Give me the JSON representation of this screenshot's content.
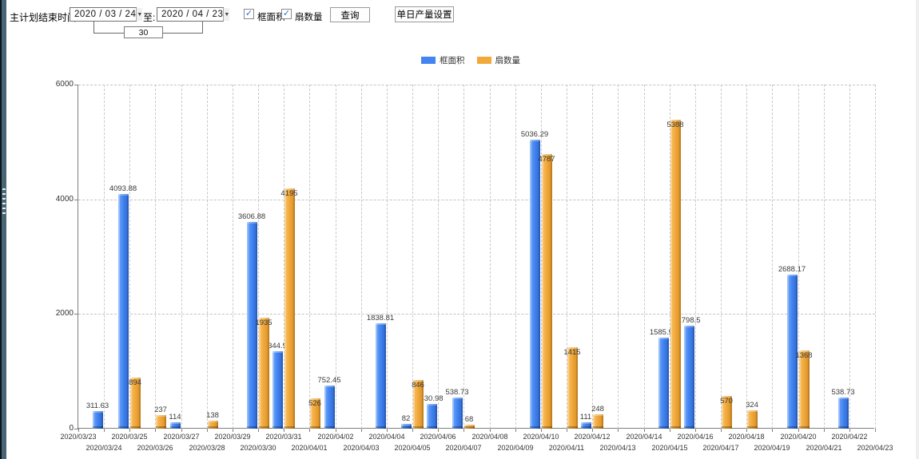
{
  "toolbar": {
    "label_plan_end": "主计划结束时间:",
    "date_from": "2020 / 03 / 24",
    "label_to": "至:",
    "date_to": "2020 / 04 / 23",
    "days_between": "30",
    "dropdown_glyph": "▼",
    "checkbox_frame_area": {
      "label": "框面积",
      "checked": true,
      "glyph": "✓"
    },
    "checkbox_fan_count": {
      "label": "扇数量",
      "checked": true,
      "glyph": "✓"
    },
    "query_button": "查询",
    "daily_output_button": "单日产量设置"
  },
  "legend": {
    "items": [
      {
        "label": "框面积",
        "color": "#4285f2"
      },
      {
        "label": "扇数量",
        "color": "#f2a93c"
      }
    ]
  },
  "chart_data": {
    "type": "bar",
    "title": "",
    "xlabel": "",
    "ylabel": "",
    "ylim": [
      0,
      6000
    ],
    "yticks": [
      0,
      2000,
      4000,
      6000
    ],
    "grid": true,
    "legend_position": "top",
    "categories": [
      "2020/03/23",
      "2020/03/24",
      "2020/03/25",
      "2020/03/26",
      "2020/03/27",
      "2020/03/28",
      "2020/03/29",
      "2020/03/30",
      "2020/03/31",
      "2020/04/01",
      "2020/04/02",
      "2020/04/03",
      "2020/04/04",
      "2020/04/05",
      "2020/04/06",
      "2020/04/07",
      "2020/04/08",
      "2020/04/09",
      "2020/04/10",
      "2020/04/11",
      "2020/04/12",
      "2020/04/13",
      "2020/04/14",
      "2020/04/15",
      "2020/04/16",
      "2020/04/17",
      "2020/04/18",
      "2020/04/19",
      "2020/04/20",
      "2020/04/21",
      "2020/04/22",
      "2020/04/23"
    ],
    "series": [
      {
        "name": "框面积",
        "color": "#4285f2",
        "color_light": "#74a8f7",
        "color_dark": "#2e66cf",
        "values": [
          null,
          311.63,
          4093.88,
          null,
          114,
          null,
          null,
          3606.88,
          1344.95,
          null,
          752.45,
          null,
          1838.81,
          82,
          430.98,
          538.73,
          null,
          null,
          5036.29,
          null,
          111,
          null,
          null,
          1585.96,
          1798.5,
          null,
          null,
          null,
          2688.17,
          null,
          538.73,
          null
        ]
      },
      {
        "name": "扇数量",
        "color": "#f2a93c",
        "color_light": "#f8c468",
        "color_dark": "#d78e24",
        "values": [
          null,
          null,
          894,
          237,
          null,
          138,
          null,
          1935,
          4195,
          526,
          null,
          null,
          null,
          846,
          null,
          68,
          null,
          null,
          4787,
          1415,
          248,
          null,
          null,
          5388,
          null,
          570,
          324,
          null,
          1368,
          null,
          null,
          null
        ]
      }
    ]
  }
}
